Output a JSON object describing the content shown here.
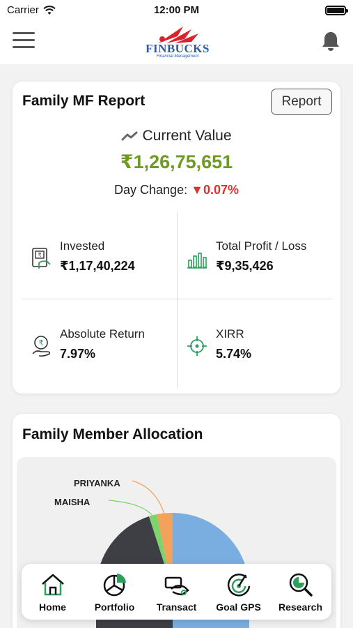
{
  "status_bar": {
    "carrier": "Carrier",
    "time": "12:00 PM"
  },
  "header": {
    "logo_text": "FINBUCKS",
    "logo_subtext": "Financial Management"
  },
  "mf_report": {
    "title": "Family MF Report",
    "report_button": "Report",
    "current_value_label": "Current Value",
    "current_value": "₹1,26,75,651",
    "day_change_label": "Day Change:",
    "day_change_value": "0.07%",
    "stats": [
      {
        "label": "Invested",
        "value": "₹1,17,40,224",
        "icon": "invested-icon"
      },
      {
        "label": "Total Profit / Loss",
        "value": "₹9,35,426",
        "icon": "bar-chart-icon"
      },
      {
        "label": "Absolute Return",
        "value": "7.97%",
        "icon": "rupee-hand-icon"
      },
      {
        "label": "XIRR",
        "value": "5.74%",
        "icon": "target-icon"
      }
    ]
  },
  "allocation": {
    "title": "Family Member Allocation",
    "labels": [
      "PRIYANKA",
      "MAISHA"
    ]
  },
  "tab_bar": {
    "items": [
      {
        "label": "Home",
        "icon": "home-icon"
      },
      {
        "label": "Portfolio",
        "icon": "portfolio-icon"
      },
      {
        "label": "Transact",
        "icon": "transact-icon"
      },
      {
        "label": "Goal GPS",
        "icon": "goal-gps-icon"
      },
      {
        "label": "Research",
        "icon": "research-icon"
      }
    ]
  },
  "colors": {
    "accent_green": "#6f9a23",
    "negative_red": "#e0302e",
    "icon_green": "#2e9e5b",
    "brand_blue": "#2a5aa8",
    "brand_red": "#d8232a"
  }
}
